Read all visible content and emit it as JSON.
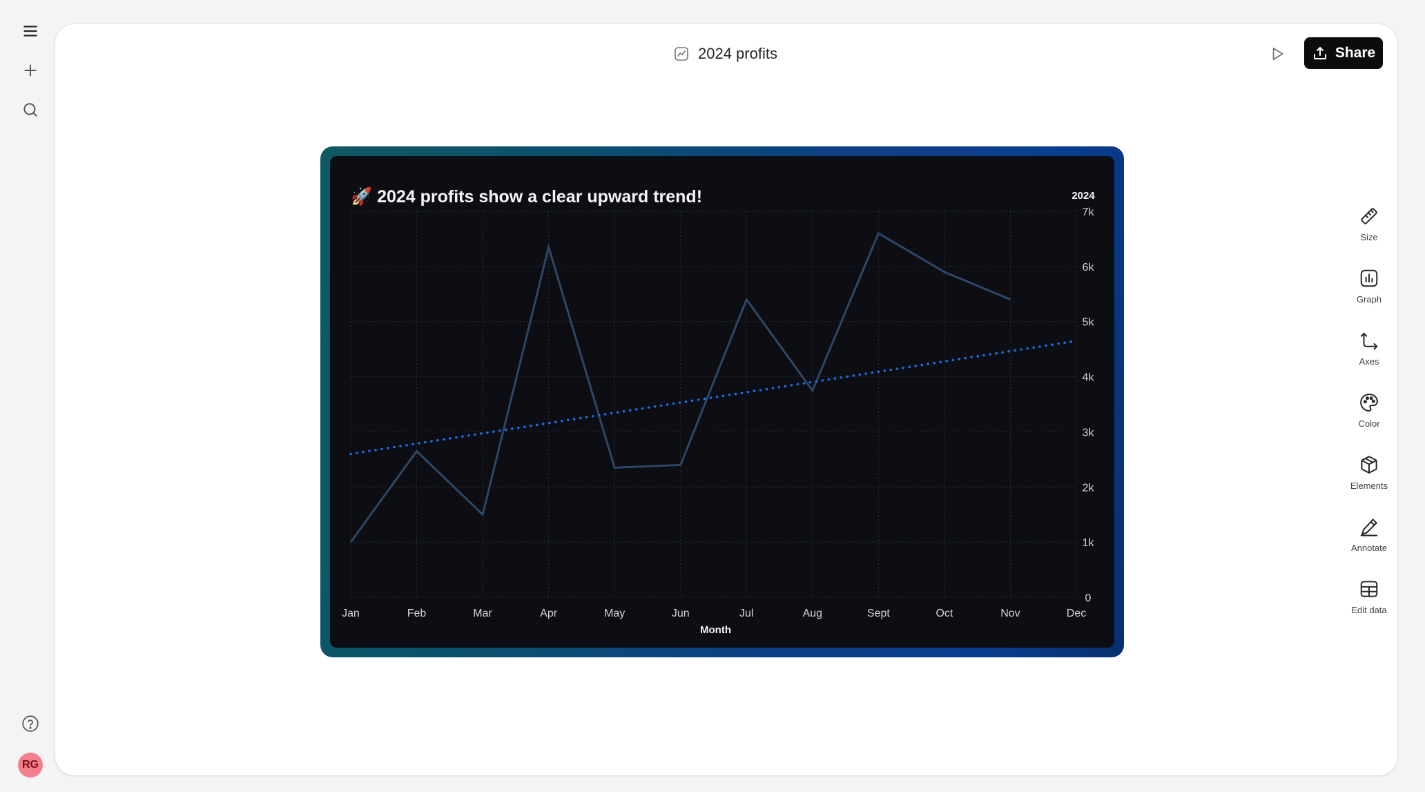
{
  "app": {
    "document_title": "2024 profits",
    "share_label": "Share"
  },
  "left_rail": {
    "items": [
      {
        "name": "menu-icon"
      },
      {
        "name": "plus-icon"
      },
      {
        "name": "search-icon"
      }
    ],
    "help_icon": "help-circle-icon",
    "avatar_initials": "RG"
  },
  "right_tools": {
    "items": [
      {
        "label": "Size",
        "icon": "ruler-icon"
      },
      {
        "label": "Graph",
        "icon": "bar-chart-icon"
      },
      {
        "label": "Axes",
        "icon": "axes-icon"
      },
      {
        "label": "Color",
        "icon": "palette-icon"
      },
      {
        "label": "Elements",
        "icon": "cube-icon"
      },
      {
        "label": "Annotate",
        "icon": "pencil-icon"
      },
      {
        "label": "Edit data",
        "icon": "table-icon"
      }
    ]
  },
  "chart_data": {
    "type": "line",
    "title": "🚀 2024 profits show a clear upward trend!",
    "xlabel": "Month",
    "ylabel": "",
    "series_label": "2024",
    "categories": [
      "Jan",
      "Feb",
      "Mar",
      "Apr",
      "May",
      "Jun",
      "Jul",
      "Aug",
      "Sept",
      "Oct",
      "Nov",
      "Dec"
    ],
    "series": [
      {
        "values": [
          1000,
          2650,
          1500,
          6350,
          2350,
          2400,
          5400,
          3750,
          6600,
          5900,
          5400,
          null
        ],
        "color": "#2f4664"
      }
    ],
    "trendline": {
      "style": "dotted",
      "color": "#1a72e8",
      "start": 2600,
      "end": 4650
    },
    "y_ticks": [
      "0",
      "1k",
      "2k",
      "3k",
      "4k",
      "5k",
      "6k",
      "7k"
    ],
    "ylim": [
      0,
      7000
    ],
    "grid": true,
    "y_axis_position": "right",
    "background": "#0c0e13"
  }
}
